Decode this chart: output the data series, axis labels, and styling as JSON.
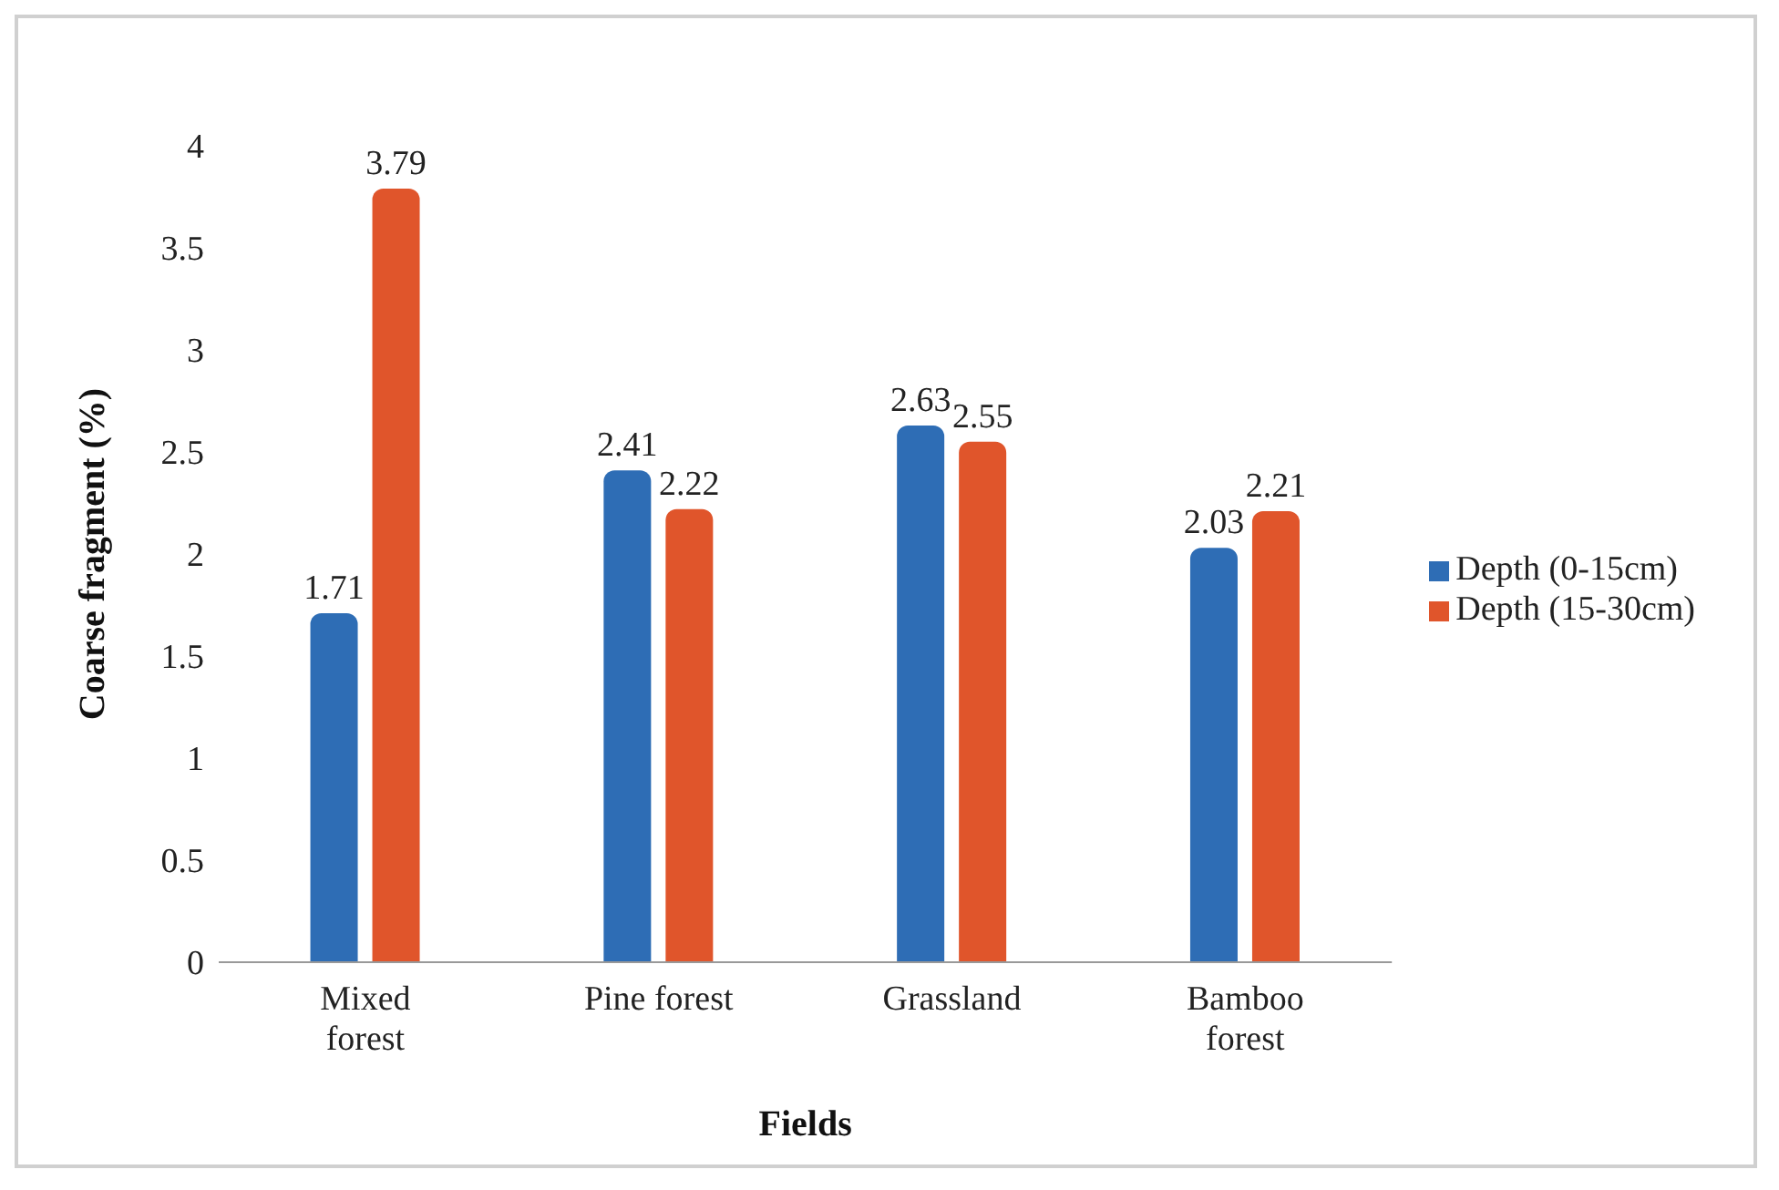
{
  "chart_data": {
    "type": "bar",
    "xlabel": "Fields",
    "ylabel": "Coarse fragment (%)",
    "categories": [
      "Mixed forest",
      "Pine forest",
      "Grassland",
      "Bamboo forest"
    ],
    "series": [
      {
        "name": "Depth (0-15cm)",
        "color": "#2e6db5",
        "values": [
          1.71,
          2.41,
          2.63,
          2.03
        ]
      },
      {
        "name": "Depth (15-30cm)",
        "color": "#e0552b",
        "values": [
          3.79,
          2.22,
          2.55,
          2.21
        ]
      }
    ],
    "ylim": [
      0,
      4
    ],
    "yticks": [
      0,
      0.5,
      1,
      1.5,
      2,
      2.5,
      3,
      3.5,
      4
    ],
    "data_labels": true,
    "legend": "right"
  }
}
